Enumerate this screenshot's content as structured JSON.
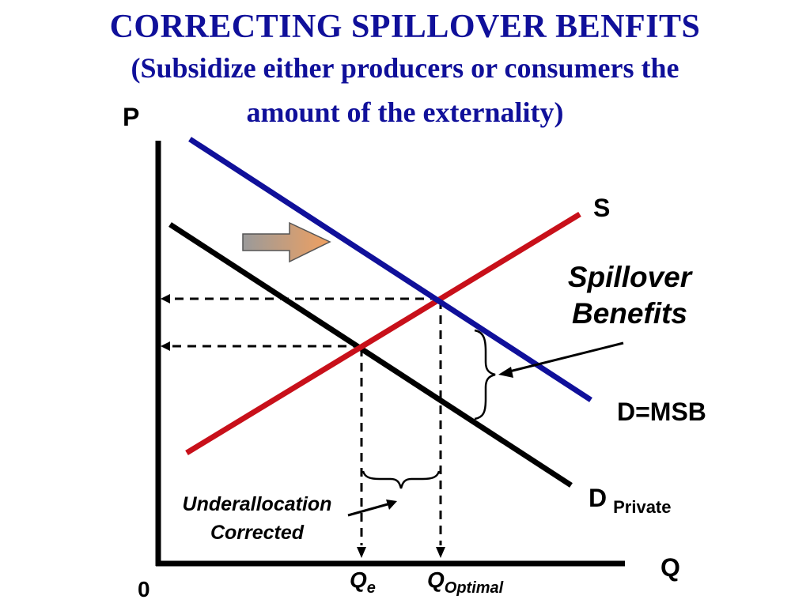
{
  "title": {
    "line1": "CORRECTING SPILLOVER BENFITS",
    "line2a": "(Subsidize either producers or consumers the",
    "line2b": "amount of the externality)"
  },
  "axes": {
    "y_label": "P",
    "x_label": "Q",
    "origin": "0"
  },
  "curves": {
    "supply": "S",
    "demand_msb": "D=MSB",
    "demand_private_main": "D",
    "demand_private_sub": "Private"
  },
  "annotations": {
    "spillover_line1": "Spillover",
    "spillover_line2": "Benefits",
    "underalloc_line1": "Underallocation",
    "underalloc_line2": "Corrected"
  },
  "quantities": {
    "qe_main": "Q",
    "qe_sub": "e",
    "qopt_main": "Q",
    "qopt_sub": "Optimal"
  },
  "colors": {
    "title": "#10109a",
    "supply": "#c8101a",
    "demand_msb": "#10109a",
    "demand_private": "#000000",
    "arrow_gradient_start": "#9a9a9a",
    "arrow_gradient_end": "#f0a060"
  }
}
